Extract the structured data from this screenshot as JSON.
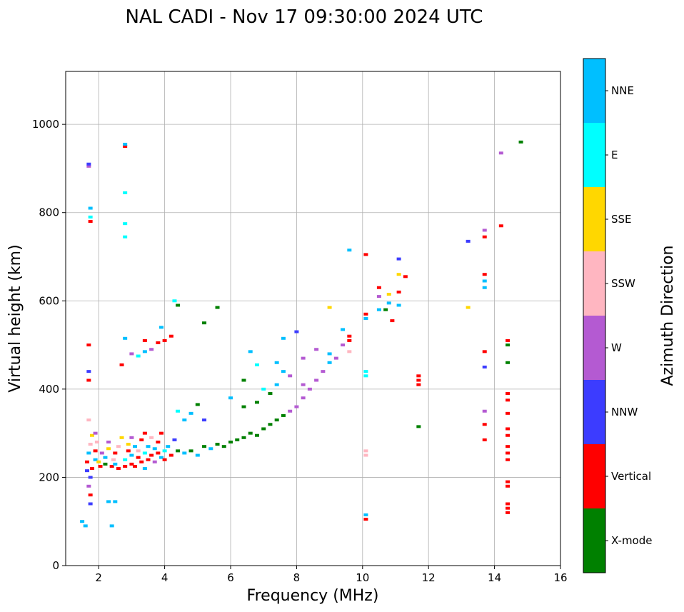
{
  "chart_data": {
    "type": "scatter",
    "title": "NAL CADI - Nov 17 09:30:00 2024 UTC",
    "xlabel": "Frequency (MHz)",
    "ylabel": "Virtual height (km)",
    "xlim": [
      1,
      16
    ],
    "ylim": [
      0,
      1120
    ],
    "xticks": [
      2,
      4,
      6,
      8,
      10,
      12,
      14,
      16
    ],
    "yticks": [
      0,
      200,
      400,
      600,
      800,
      1000
    ],
    "grid": true,
    "colorbar": {
      "label": "Azimuth Direction",
      "categories": [
        {
          "name": "X-mode",
          "color": "#008000"
        },
        {
          "name": "Vertical",
          "color": "#ff0000"
        },
        {
          "name": "NNW",
          "color": "#3c3cff"
        },
        {
          "name": "W",
          "color": "#b45ad2"
        },
        {
          "name": "SSW",
          "color": "#ffb6c1"
        },
        {
          "name": "SSE",
          "color": "#ffd700"
        },
        {
          "name": "E",
          "color": "#00ffff"
        },
        {
          "name": "NNE",
          "color": "#00bfff"
        }
      ]
    },
    "points": [
      [
        1.5,
        100,
        "NNE"
      ],
      [
        1.6,
        90,
        "NNE"
      ],
      [
        1.75,
        140,
        "NNW"
      ],
      [
        1.75,
        160,
        "Vertical"
      ],
      [
        1.7,
        180,
        "W"
      ],
      [
        1.75,
        200,
        "NNW"
      ],
      [
        1.65,
        215,
        "NNW"
      ],
      [
        1.65,
        235,
        "Vertical"
      ],
      [
        1.7,
        255,
        "NNE"
      ],
      [
        1.75,
        275,
        "SSW"
      ],
      [
        1.8,
        295,
        "SSE"
      ],
      [
        1.7,
        330,
        "SSW"
      ],
      [
        1.7,
        420,
        "Vertical"
      ],
      [
        1.7,
        440,
        "NNW"
      ],
      [
        1.7,
        500,
        "Vertical"
      ],
      [
        1.75,
        780,
        "Vertical"
      ],
      [
        1.75,
        790,
        "E"
      ],
      [
        1.75,
        810,
        "NNE"
      ],
      [
        1.7,
        905,
        "W"
      ],
      [
        1.7,
        910,
        "NNW"
      ],
      [
        1.8,
        220,
        "Vertical"
      ],
      [
        1.9,
        240,
        "NNE"
      ],
      [
        1.9,
        260,
        "Vertical"
      ],
      [
        1.95,
        280,
        "SSW"
      ],
      [
        1.9,
        300,
        "W"
      ],
      [
        2.0,
        235,
        "SSE"
      ],
      [
        2.05,
        225,
        "Vertical"
      ],
      [
        2.1,
        255,
        "W"
      ],
      [
        2.2,
        230,
        "X-mode"
      ],
      [
        2.2,
        245,
        "NNE"
      ],
      [
        2.3,
        265,
        "SSE"
      ],
      [
        2.3,
        280,
        "W"
      ],
      [
        2.4,
        225,
        "Vertical"
      ],
      [
        2.45,
        240,
        "SSW"
      ],
      [
        2.5,
        230,
        "NNE"
      ],
      [
        2.5,
        255,
        "Vertical"
      ],
      [
        2.6,
        220,
        "Vertical"
      ],
      [
        2.6,
        270,
        "SSW"
      ],
      [
        2.7,
        290,
        "SSE"
      ],
      [
        2.8,
        225,
        "Vertical"
      ],
      [
        2.8,
        240,
        "E"
      ],
      [
        2.9,
        260,
        "Vertical"
      ],
      [
        2.9,
        275,
        "SSE"
      ],
      [
        3.0,
        230,
        "Vertical"
      ],
      [
        3.0,
        250,
        "NNE"
      ],
      [
        3.0,
        290,
        "W"
      ],
      [
        3.1,
        225,
        "Vertical"
      ],
      [
        3.1,
        270,
        "NNE"
      ],
      [
        3.2,
        245,
        "Vertical"
      ],
      [
        3.2,
        260,
        "SSW"
      ],
      [
        3.3,
        235,
        "Vertical"
      ],
      [
        3.3,
        285,
        "Vertical"
      ],
      [
        3.4,
        220,
        "NNE"
      ],
      [
        3.4,
        255,
        "E"
      ],
      [
        3.4,
        300,
        "Vertical"
      ],
      [
        3.5,
        240,
        "Vertical"
      ],
      [
        3.5,
        270,
        "NNE"
      ],
      [
        3.6,
        250,
        "Vertical"
      ],
      [
        3.6,
        290,
        "SSW"
      ],
      [
        3.7,
        235,
        "W"
      ],
      [
        3.7,
        265,
        "NNE"
      ],
      [
        3.8,
        255,
        "Vertical"
      ],
      [
        3.8,
        280,
        "Vertical"
      ],
      [
        3.9,
        245,
        "NNE"
      ],
      [
        3.9,
        300,
        "Vertical"
      ],
      [
        4.0,
        260,
        "E"
      ],
      [
        4.0,
        240,
        "Vertical"
      ],
      [
        4.1,
        270,
        "NNE"
      ],
      [
        4.2,
        250,
        "Vertical"
      ],
      [
        4.3,
        285,
        "NNW"
      ],
      [
        4.4,
        260,
        "X-mode"
      ],
      [
        4.6,
        255,
        "NNE"
      ],
      [
        4.8,
        260,
        "X-mode"
      ],
      [
        5.0,
        250,
        "NNE"
      ],
      [
        5.2,
        270,
        "X-mode"
      ],
      [
        5.4,
        265,
        "NNE"
      ],
      [
        5.6,
        275,
        "X-mode"
      ],
      [
        5.8,
        270,
        "X-mode"
      ],
      [
        6.0,
        280,
        "X-mode"
      ],
      [
        6.2,
        285,
        "X-mode"
      ],
      [
        6.4,
        290,
        "X-mode"
      ],
      [
        6.6,
        300,
        "X-mode"
      ],
      [
        6.8,
        295,
        "X-mode"
      ],
      [
        7.0,
        310,
        "X-mode"
      ],
      [
        7.2,
        320,
        "X-mode"
      ],
      [
        7.4,
        330,
        "X-mode"
      ],
      [
        7.6,
        340,
        "X-mode"
      ],
      [
        7.8,
        350,
        "W"
      ],
      [
        8.0,
        360,
        "W"
      ],
      [
        8.2,
        380,
        "W"
      ],
      [
        8.4,
        400,
        "W"
      ],
      [
        8.6,
        420,
        "W"
      ],
      [
        8.8,
        440,
        "W"
      ],
      [
        9.0,
        460,
        "NNE"
      ],
      [
        9.0,
        480,
        "NNE"
      ],
      [
        9.2,
        470,
        "W"
      ],
      [
        9.4,
        500,
        "W"
      ],
      [
        9.6,
        510,
        "Vertical"
      ],
      [
        9.6,
        485,
        "SSW"
      ],
      [
        9.4,
        535,
        "NNE"
      ],
      [
        4.4,
        350,
        "E"
      ],
      [
        4.6,
        330,
        "NNE"
      ],
      [
        4.8,
        345,
        "NNE"
      ],
      [
        5.0,
        365,
        "X-mode"
      ],
      [
        5.2,
        330,
        "NNW"
      ],
      [
        6.0,
        380,
        "NNE"
      ],
      [
        6.4,
        360,
        "X-mode"
      ],
      [
        6.8,
        370,
        "X-mode"
      ],
      [
        7.0,
        400,
        "E"
      ],
      [
        7.2,
        390,
        "X-mode"
      ],
      [
        7.4,
        410,
        "NNE"
      ],
      [
        7.6,
        440,
        "NNE"
      ],
      [
        7.8,
        430,
        "W"
      ],
      [
        8.2,
        410,
        "W"
      ],
      [
        6.8,
        455,
        "E"
      ],
      [
        6.6,
        485,
        "NNE"
      ],
      [
        7.6,
        515,
        "NNE"
      ],
      [
        8.0,
        530,
        "NNW"
      ],
      [
        5.2,
        550,
        "X-mode"
      ],
      [
        5.6,
        585,
        "X-mode"
      ],
      [
        4.4,
        590,
        "X-mode"
      ],
      [
        4.3,
        600,
        "E"
      ],
      [
        3.0,
        480,
        "W"
      ],
      [
        3.2,
        475,
        "E"
      ],
      [
        3.4,
        485,
        "NNE"
      ],
      [
        3.6,
        490,
        "W"
      ],
      [
        3.8,
        505,
        "Vertical"
      ],
      [
        4.0,
        510,
        "Vertical"
      ],
      [
        4.2,
        520,
        "Vertical"
      ],
      [
        3.9,
        540,
        "NNE"
      ],
      [
        3.4,
        510,
        "Vertical"
      ],
      [
        2.8,
        515,
        "NNE"
      ],
      [
        2.7,
        455,
        "Vertical"
      ],
      [
        2.8,
        950,
        "Vertical"
      ],
      [
        2.8,
        955,
        "NNE"
      ],
      [
        2.8,
        845,
        "E"
      ],
      [
        2.8,
        775,
        "E"
      ],
      [
        2.8,
        745,
        "E"
      ],
      [
        2.5,
        145,
        "NNE"
      ],
      [
        2.3,
        145,
        "NNE"
      ],
      [
        2.4,
        90,
        "NNE"
      ],
      [
        9.6,
        715,
        "NNE"
      ],
      [
        10.1,
        705,
        "Vertical"
      ],
      [
        10.1,
        570,
        "Vertical"
      ],
      [
        10.1,
        560,
        "NNE"
      ],
      [
        10.1,
        440,
        "E"
      ],
      [
        10.1,
        430,
        "E"
      ],
      [
        10.1,
        260,
        "SSW"
      ],
      [
        10.1,
        250,
        "SSW"
      ],
      [
        10.1,
        115,
        "NNE"
      ],
      [
        10.1,
        105,
        "Vertical"
      ],
      [
        10.5,
        580,
        "NNE"
      ],
      [
        10.5,
        630,
        "Vertical"
      ],
      [
        10.5,
        610,
        "W"
      ],
      [
        10.7,
        580,
        "X-mode"
      ],
      [
        10.8,
        595,
        "NNE"
      ],
      [
        10.8,
        615,
        "SSE"
      ],
      [
        10.9,
        555,
        "Vertical"
      ],
      [
        11.1,
        590,
        "NNE"
      ],
      [
        11.1,
        620,
        "Vertical"
      ],
      [
        11.1,
        660,
        "SSE"
      ],
      [
        11.1,
        695,
        "NNW"
      ],
      [
        11.3,
        655,
        "Vertical"
      ],
      [
        11.7,
        430,
        "Vertical"
      ],
      [
        11.7,
        420,
        "Vertical"
      ],
      [
        11.7,
        410,
        "Vertical"
      ],
      [
        11.7,
        315,
        "X-mode"
      ],
      [
        13.2,
        735,
        "NNW"
      ],
      [
        13.2,
        585,
        "SSE"
      ],
      [
        13.7,
        760,
        "W"
      ],
      [
        13.7,
        745,
        "Vertical"
      ],
      [
        13.7,
        660,
        "Vertical"
      ],
      [
        13.7,
        645,
        "NNE"
      ],
      [
        13.7,
        630,
        "NNE"
      ],
      [
        13.7,
        485,
        "Vertical"
      ],
      [
        13.7,
        450,
        "NNW"
      ],
      [
        13.7,
        350,
        "W"
      ],
      [
        13.7,
        320,
        "Vertical"
      ],
      [
        13.7,
        285,
        "Vertical"
      ],
      [
        14.2,
        770,
        "Vertical"
      ],
      [
        14.2,
        935,
        "W"
      ],
      [
        14.8,
        960,
        "X-mode"
      ],
      [
        14.4,
        510,
        "Vertical"
      ],
      [
        14.4,
        500,
        "X-mode"
      ],
      [
        14.4,
        460,
        "X-mode"
      ],
      [
        14.4,
        390,
        "Vertical"
      ],
      [
        14.4,
        375,
        "Vertical"
      ],
      [
        14.4,
        345,
        "Vertical"
      ],
      [
        14.4,
        310,
        "Vertical"
      ],
      [
        14.4,
        295,
        "Vertical"
      ],
      [
        14.4,
        270,
        "Vertical"
      ],
      [
        14.4,
        255,
        "Vertical"
      ],
      [
        14.4,
        240,
        "Vertical"
      ],
      [
        14.4,
        190,
        "Vertical"
      ],
      [
        14.4,
        180,
        "Vertical"
      ],
      [
        14.4,
        140,
        "Vertical"
      ],
      [
        14.4,
        130,
        "Vertical"
      ],
      [
        14.4,
        120,
        "Vertical"
      ],
      [
        9.0,
        585,
        "SSE"
      ],
      [
        9.6,
        520,
        "Vertical"
      ],
      [
        8.6,
        490,
        "W"
      ],
      [
        8.2,
        470,
        "W"
      ],
      [
        7.4,
        460,
        "NNE"
      ],
      [
        6.4,
        420,
        "X-mode"
      ]
    ]
  }
}
